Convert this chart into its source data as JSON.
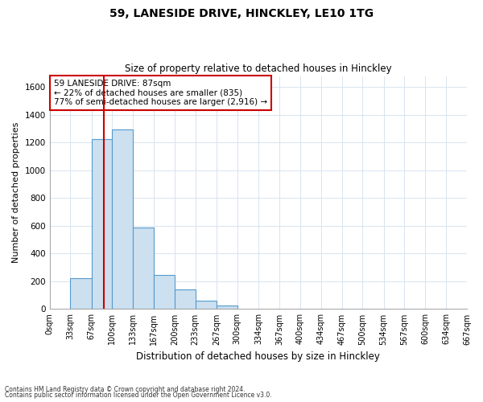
{
  "title": "59, LANESIDE DRIVE, HINCKLEY, LE10 1TG",
  "subtitle": "Size of property relative to detached houses in Hinckley",
  "xlabel": "Distribution of detached houses by size in Hinckley",
  "ylabel": "Number of detached properties",
  "bar_edges": [
    0,
    33,
    67,
    100,
    133,
    167,
    200,
    233,
    267,
    300,
    334,
    367,
    400,
    434,
    467,
    500,
    534,
    567,
    600,
    634,
    667
  ],
  "bar_heights": [
    0,
    220,
    1225,
    1295,
    590,
    245,
    140,
    58,
    25,
    0,
    0,
    0,
    0,
    0,
    0,
    0,
    0,
    0,
    0,
    0
  ],
  "bar_color": "#cce0f0",
  "bar_edge_color": "#5599cc",
  "vline_x": 87,
  "vline_color": "#cc0000",
  "ylim": [
    0,
    1680
  ],
  "yticks": [
    0,
    200,
    400,
    600,
    800,
    1000,
    1200,
    1400,
    1600
  ],
  "xlim": [
    0,
    667
  ],
  "xtick_labels": [
    "0sqm",
    "33sqm",
    "67sqm",
    "100sqm",
    "133sqm",
    "167sqm",
    "200sqm",
    "233sqm",
    "267sqm",
    "300sqm",
    "334sqm",
    "367sqm",
    "400sqm",
    "434sqm",
    "467sqm",
    "500sqm",
    "534sqm",
    "567sqm",
    "600sqm",
    "634sqm",
    "667sqm"
  ],
  "annotation_title": "59 LANESIDE DRIVE: 87sqm",
  "annotation_line1": "← 22% of detached houses are smaller (835)",
  "annotation_line2": "77% of semi-detached houses are larger (2,916) →",
  "annotation_box_color": "#ffffff",
  "annotation_box_edge": "#cc0000",
  "footnote1": "Contains HM Land Registry data © Crown copyright and database right 2024.",
  "footnote2": "Contains public sector information licensed under the Open Government Licence v3.0.",
  "grid_color": "#d8e4f0",
  "background_color": "#ffffff"
}
